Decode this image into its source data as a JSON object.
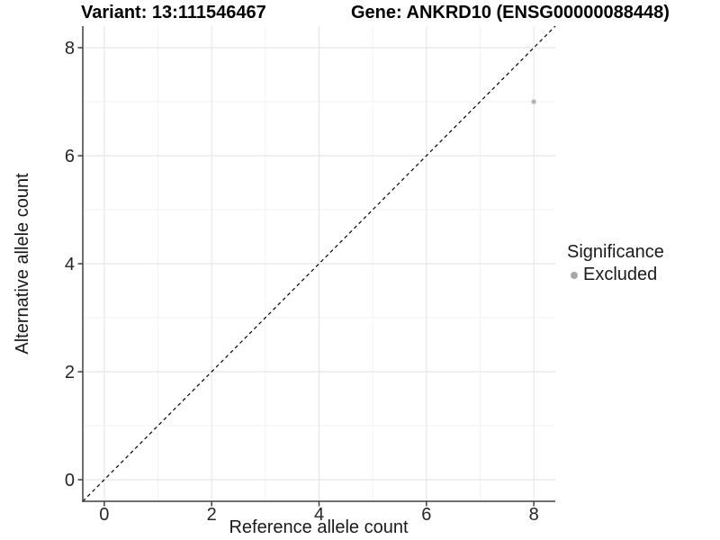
{
  "chart_data": {
    "type": "scatter",
    "titles": {
      "left": "Variant: 13:111546467",
      "right": "Gene: ANKRD10 (ENSG00000088448)"
    },
    "xlabel": "Reference allele count",
    "ylabel": "Alternative allele count",
    "xlim": [
      -0.4,
      8.4
    ],
    "ylim": [
      -0.4,
      8.4
    ],
    "x_ticks": [
      0,
      2,
      4,
      6,
      8
    ],
    "y_ticks": [
      0,
      2,
      4,
      6,
      8
    ],
    "x_minor_gridlines": [
      1,
      3,
      5,
      7
    ],
    "y_minor_gridlines": [
      1,
      3,
      5,
      7
    ],
    "grid": "major and minor, light grey on white",
    "legend_position": "right, middle",
    "legend": {
      "title": "Significance",
      "items": [
        {
          "label": "Excluded",
          "color": "#a6a6a6"
        }
      ]
    },
    "series": [
      {
        "name": "Excluded",
        "color": "#b1b1b1",
        "points": [
          {
            "x": 8,
            "y": 7
          }
        ]
      }
    ],
    "reference_line": {
      "slope": 1,
      "intercept": 0,
      "style": "dashed",
      "color": "#000000"
    }
  },
  "style": {
    "background": "#ffffff",
    "grid_major_color": "#e7e7e7",
    "grid_minor_color": "#f3f3f3",
    "axis_color": "#404040",
    "tick_text_color": "#262626",
    "text_color": "#1a1a1a",
    "title_color": "#000000"
  }
}
